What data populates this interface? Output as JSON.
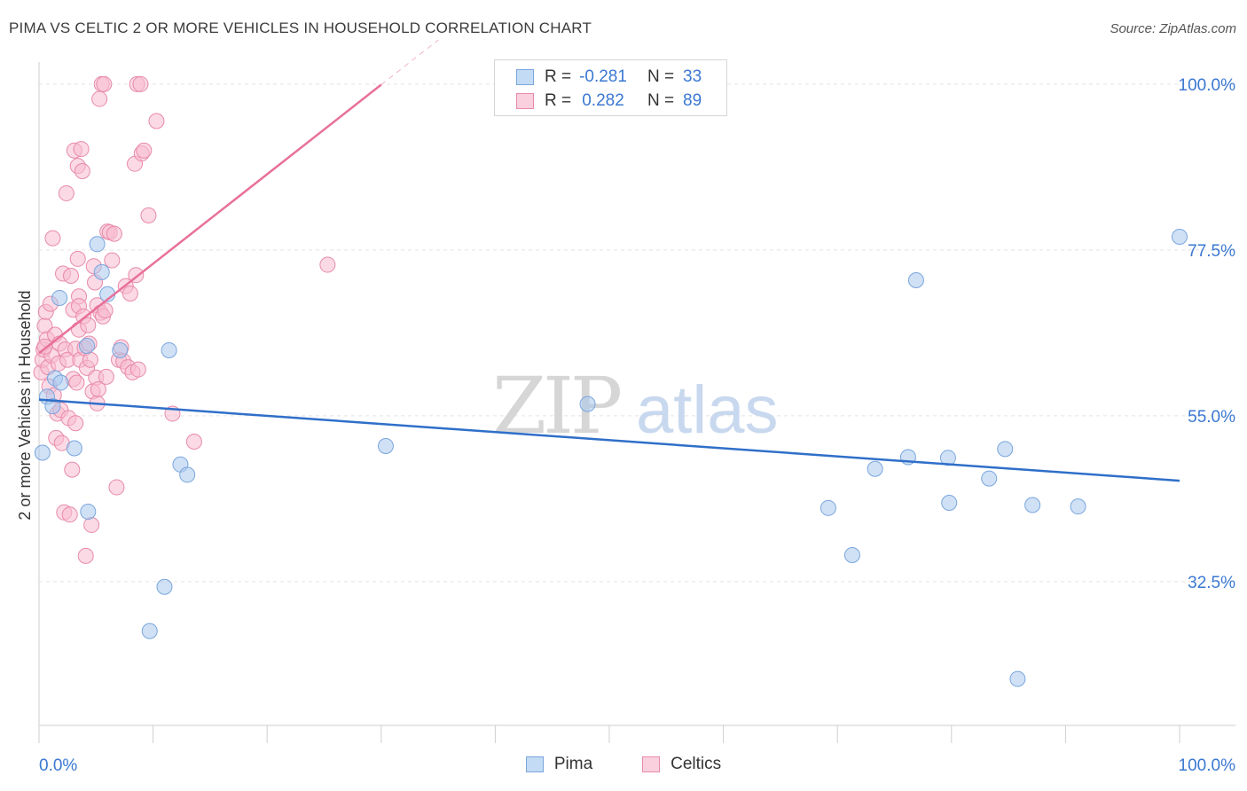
{
  "title": "PIMA VS CELTIC 2 OR MORE VEHICLES IN HOUSEHOLD CORRELATION CHART",
  "source": "Source: ZipAtlas.com",
  "watermark": {
    "zip": "ZIP",
    "atlas": "atlas"
  },
  "legend": {
    "r_label": "R =",
    "n_label": "N =",
    "series": [
      {
        "name": "Pima",
        "r": "-0.281",
        "n": "33",
        "color": "#a9c8ef",
        "edge": "#7aa6dd"
      },
      {
        "name": "Celtics",
        "r": "0.282",
        "n": "89",
        "color": "#f7bcd0",
        "edge": "#e88aa8"
      }
    ]
  },
  "chart_data": {
    "type": "scatter",
    "xlabel": "",
    "ylabel": "2 or more Vehicles in Household",
    "xlim": [
      0,
      100
    ],
    "ylim": [
      13,
      103
    ],
    "x_tick_labels": [
      "0.0%",
      "100.0%"
    ],
    "y_ticks": [
      32.5,
      55.0,
      77.5,
      100.0
    ],
    "y_tick_labels": [
      "32.5%",
      "55.0%",
      "77.5%",
      "100.0%"
    ],
    "series": [
      {
        "name": "Pima",
        "color": "#a9c8ef",
        "edge": "#7aa6dd",
        "trend": {
          "x0": 0,
          "y0": 57.2,
          "x1": 100,
          "y1": 46.2,
          "color": "#2f6fc9",
          "dash_from": null
        },
        "points": [
          [
            0.3,
            50.0
          ],
          [
            0.7,
            57.6
          ],
          [
            1.2,
            56.3
          ],
          [
            1.8,
            71.0
          ],
          [
            1.4,
            60.1
          ],
          [
            1.9,
            59.5
          ],
          [
            3.1,
            50.6
          ],
          [
            4.2,
            64.5
          ],
          [
            4.3,
            42.0
          ],
          [
            5.1,
            78.3
          ],
          [
            5.5,
            74.5
          ],
          [
            6.0,
            71.5
          ],
          [
            7.1,
            63.9
          ],
          [
            9.7,
            25.8
          ],
          [
            11.0,
            31.8
          ],
          [
            11.4,
            63.9
          ],
          [
            12.4,
            48.4
          ],
          [
            13.0,
            47.0
          ],
          [
            30.4,
            50.9
          ],
          [
            48.1,
            56.6
          ],
          [
            69.2,
            42.5
          ],
          [
            71.3,
            36.1
          ],
          [
            73.3,
            47.8
          ],
          [
            76.2,
            49.4
          ],
          [
            76.9,
            73.4
          ],
          [
            79.7,
            49.3
          ],
          [
            79.8,
            43.2
          ],
          [
            83.3,
            46.5
          ],
          [
            84.7,
            50.5
          ],
          [
            85.8,
            19.3
          ],
          [
            87.1,
            42.9
          ],
          [
            91.1,
            42.7
          ],
          [
            100.0,
            79.3
          ]
        ]
      },
      {
        "name": "Celtics",
        "color": "#f7bcd0",
        "edge": "#e88aa8",
        "trend": {
          "x0": 0,
          "y0": 63.5,
          "x1": 35,
          "y1": 106.0,
          "color": "#e8709a",
          "dash_from": 30
        },
        "points": [
          [
            0.2,
            60.9
          ],
          [
            0.3,
            62.6
          ],
          [
            0.4,
            64.0
          ],
          [
            0.5,
            67.2
          ],
          [
            0.6,
            69.1
          ],
          [
            0.7,
            65.4
          ],
          [
            0.8,
            61.6
          ],
          [
            0.9,
            59.0
          ],
          [
            1.0,
            70.2
          ],
          [
            1.1,
            63.2
          ],
          [
            1.2,
            79.1
          ],
          [
            1.3,
            57.8
          ],
          [
            1.4,
            66.0
          ],
          [
            1.5,
            52.0
          ],
          [
            1.6,
            55.3
          ],
          [
            1.7,
            62.1
          ],
          [
            1.8,
            64.8
          ],
          [
            1.9,
            55.8
          ],
          [
            2.0,
            51.3
          ],
          [
            2.1,
            74.3
          ],
          [
            2.2,
            41.9
          ],
          [
            2.3,
            64.0
          ],
          [
            2.4,
            85.2
          ],
          [
            2.5,
            62.6
          ],
          [
            2.6,
            54.7
          ],
          [
            2.7,
            41.6
          ],
          [
            2.8,
            74.0
          ],
          [
            2.9,
            47.7
          ],
          [
            3.0,
            69.4
          ],
          [
            3.0,
            60.0
          ],
          [
            3.1,
            91.0
          ],
          [
            3.2,
            64.1
          ],
          [
            3.2,
            54.0
          ],
          [
            3.3,
            59.5
          ],
          [
            3.4,
            88.9
          ],
          [
            3.4,
            76.3
          ],
          [
            3.5,
            66.7
          ],
          [
            3.5,
            71.2
          ],
          [
            3.5,
            69.9
          ],
          [
            3.6,
            62.6
          ],
          [
            3.7,
            91.2
          ],
          [
            3.8,
            88.2
          ],
          [
            3.9,
            68.5
          ],
          [
            4.0,
            64.2
          ],
          [
            4.1,
            36.0
          ],
          [
            4.2,
            61.5
          ],
          [
            4.3,
            67.3
          ],
          [
            4.4,
            64.8
          ],
          [
            4.5,
            62.6
          ],
          [
            4.6,
            40.2
          ],
          [
            4.7,
            58.3
          ],
          [
            4.8,
            75.3
          ],
          [
            4.9,
            73.1
          ],
          [
            5.0,
            60.2
          ],
          [
            5.1,
            56.7
          ],
          [
            5.1,
            70.0
          ],
          [
            5.2,
            58.6
          ],
          [
            5.3,
            98.0
          ],
          [
            5.4,
            69.0
          ],
          [
            5.5,
            100.0
          ],
          [
            5.6,
            68.5
          ],
          [
            5.7,
            100.0
          ],
          [
            5.8,
            69.3
          ],
          [
            5.9,
            60.3
          ],
          [
            6.0,
            80.0
          ],
          [
            6.2,
            79.9
          ],
          [
            6.4,
            76.1
          ],
          [
            6.6,
            79.7
          ],
          [
            6.8,
            45.3
          ],
          [
            7.0,
            62.6
          ],
          [
            7.2,
            64.3
          ],
          [
            7.4,
            62.4
          ],
          [
            7.6,
            72.6
          ],
          [
            7.8,
            61.6
          ],
          [
            8.0,
            71.6
          ],
          [
            8.2,
            60.9
          ],
          [
            8.4,
            89.2
          ],
          [
            8.5,
            74.1
          ],
          [
            8.6,
            100.0
          ],
          [
            8.7,
            61.3
          ],
          [
            8.9,
            100.0
          ],
          [
            9.0,
            90.6
          ],
          [
            9.2,
            91.0
          ],
          [
            9.6,
            82.2
          ],
          [
            10.3,
            95.0
          ],
          [
            11.7,
            55.3
          ],
          [
            13.6,
            51.5
          ],
          [
            25.3,
            75.5
          ],
          [
            0.5,
            64.4
          ]
        ]
      }
    ]
  }
}
